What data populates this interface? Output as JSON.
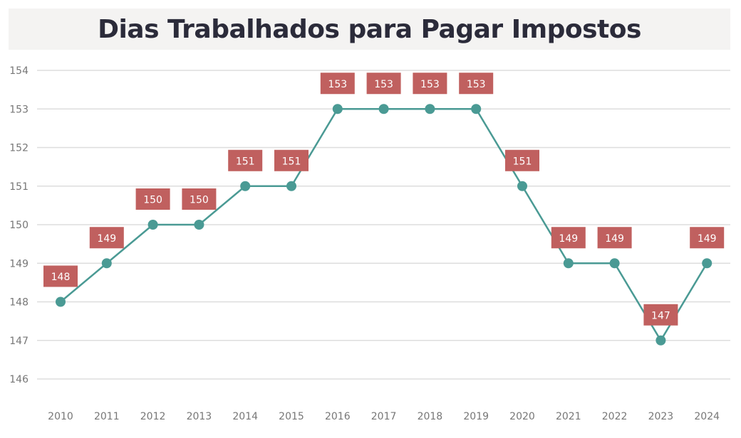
{
  "chart_data": {
    "type": "line",
    "title": "Dias Trabalhados para Pagar Impostos",
    "xlabel": "",
    "ylabel": "",
    "categories": [
      "2010",
      "2011",
      "2012",
      "2013",
      "2014",
      "2015",
      "2016",
      "2017",
      "2018",
      "2019",
      "2020",
      "2021",
      "2022",
      "2023",
      "2024"
    ],
    "values": [
      148,
      149,
      150,
      150,
      151,
      151,
      153,
      153,
      153,
      153,
      151,
      149,
      149,
      147,
      149
    ],
    "ylim": [
      146,
      154
    ],
    "yticks": [
      146,
      147,
      148,
      149,
      150,
      151,
      152,
      153,
      154
    ],
    "grid": true,
    "data_labels": true,
    "colors": {
      "line": "#4a9a94",
      "label_bg": "#c0605f",
      "label_text": "#ffffff",
      "grid": "#dddddd",
      "title_bg": "#f4f3f2",
      "tick_text": "#777777"
    }
  }
}
